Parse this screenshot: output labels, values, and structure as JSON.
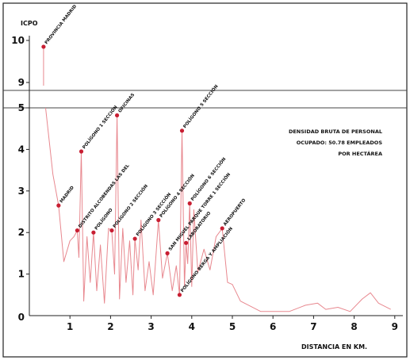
{
  "chart_data": {
    "type": "line",
    "title": "",
    "ylabel": "ICPO",
    "xlabel": "DISTANCIA  EN KM.",
    "xlim": [
      0,
      9.6
    ],
    "ylim_lower": [
      0,
      5
    ],
    "ylim_upper": [
      9,
      10
    ],
    "x_ticks": [
      "1",
      "2",
      "3",
      "4",
      "5",
      "6",
      "7",
      "8",
      "9"
    ],
    "y_ticks_lower": [
      "1",
      "2",
      "3",
      "4",
      "5"
    ],
    "y_ticks_upper": [
      "9",
      "10"
    ],
    "legend": {
      "placement": "right",
      "lines": [
        "DENSIDAD BRUTA DE PERSONAL",
        "OCUPADO: 50.78 EMPLEADOS",
        "POR HECTÁREA"
      ]
    },
    "line_color": "#e8888f",
    "marker_color": "#c81e32",
    "series_points": [
      [
        0.4,
        5.0
      ],
      [
        0.58,
        3.4
      ],
      [
        0.72,
        2.65
      ],
      [
        0.85,
        1.3
      ],
      [
        1.0,
        1.8
      ],
      [
        1.1,
        1.9
      ],
      [
        1.18,
        2.05
      ],
      [
        1.22,
        1.4
      ],
      [
        1.28,
        3.95
      ],
      [
        1.34,
        0.35
      ],
      [
        1.42,
        1.9
      ],
      [
        1.5,
        0.8
      ],
      [
        1.58,
        2.0
      ],
      [
        1.66,
        0.6
      ],
      [
        1.75,
        1.7
      ],
      [
        1.85,
        0.3
      ],
      [
        1.95,
        2.1
      ],
      [
        2.03,
        2.05
      ],
      [
        2.1,
        1.0
      ],
      [
        2.16,
        4.82
      ],
      [
        2.22,
        0.4
      ],
      [
        2.3,
        2.1
      ],
      [
        2.38,
        0.8
      ],
      [
        2.47,
        1.8
      ],
      [
        2.55,
        0.5
      ],
      [
        2.6,
        1.85
      ],
      [
        2.68,
        1.1
      ],
      [
        2.75,
        2.3
      ],
      [
        2.85,
        0.6
      ],
      [
        2.95,
        1.3
      ],
      [
        3.05,
        0.5
      ],
      [
        3.18,
        2.3
      ],
      [
        3.28,
        0.9
      ],
      [
        3.4,
        1.5
      ],
      [
        3.52,
        0.6
      ],
      [
        3.62,
        1.2
      ],
      [
        3.7,
        0.5
      ],
      [
        3.76,
        4.45
      ],
      [
        3.82,
        0.7
      ],
      [
        3.86,
        1.75
      ],
      [
        3.9,
        1.25
      ],
      [
        3.95,
        2.7
      ],
      [
        4.0,
        0.7
      ],
      [
        4.05,
        2.55
      ],
      [
        4.15,
        1.05
      ],
      [
        4.3,
        1.6
      ],
      [
        4.45,
        1.1
      ],
      [
        4.6,
        1.9
      ],
      [
        4.75,
        2.1
      ],
      [
        4.88,
        0.8
      ],
      [
        5.0,
        0.75
      ],
      [
        5.2,
        0.35
      ],
      [
        5.4,
        0.25
      ],
      [
        5.7,
        0.1
      ],
      [
        6.0,
        0.1
      ],
      [
        6.4,
        0.1
      ],
      [
        6.8,
        0.25
      ],
      [
        7.1,
        0.3
      ],
      [
        7.3,
        0.15
      ],
      [
        7.6,
        0.2
      ],
      [
        7.9,
        0.1
      ],
      [
        8.2,
        0.4
      ],
      [
        8.4,
        0.55
      ],
      [
        8.6,
        0.3
      ],
      [
        8.9,
        0.15
      ]
    ],
    "spike_points": [
      [
        0.35,
        9.85
      ]
    ],
    "labeled_points": [
      {
        "x": 0.35,
        "y": 9.85,
        "label": "PROVINCIA MADRID",
        "panel": "upper"
      },
      {
        "x": 0.72,
        "y": 2.65,
        "label": "MADRID",
        "panel": "lower"
      },
      {
        "x": 1.28,
        "y": 3.95,
        "label": "POLÍGONO 1 SECCIÓN",
        "panel": "lower"
      },
      {
        "x": 1.18,
        "y": 2.05,
        "label": "DISTRITO ALCOBENDAS LAS DEL",
        "panel": "lower"
      },
      {
        "x": 1.58,
        "y": 2.0,
        "label": "POLÍGONO",
        "panel": "lower"
      },
      {
        "x": 2.16,
        "y": 4.82,
        "label": "OFICINAS",
        "panel": "lower"
      },
      {
        "x": 2.03,
        "y": 2.05,
        "label": "POLÍGONO 2 SECCIÓN",
        "panel": "lower"
      },
      {
        "x": 2.6,
        "y": 1.85,
        "label": "POLÍGONO 3 SECCIÓN",
        "panel": "lower"
      },
      {
        "x": 3.18,
        "y": 2.3,
        "label": "POLÍGONO 4 SECCIÓN",
        "panel": "lower"
      },
      {
        "x": 3.4,
        "y": 1.5,
        "label": "SAN MIGUEL PARQUE TORRE 1 SECCIÓN",
        "panel": "lower"
      },
      {
        "x": 3.76,
        "y": 4.45,
        "label": "POLÍGONO 5 SECCIÓN",
        "panel": "lower"
      },
      {
        "x": 3.95,
        "y": 2.7,
        "label": "POLÍGONO 6 SECCIÓN",
        "panel": "lower"
      },
      {
        "x": 3.86,
        "y": 1.75,
        "label": "LABORATORIO",
        "panel": "lower"
      },
      {
        "x": 4.75,
        "y": 2.1,
        "label": "AEROPUERTO",
        "panel": "lower"
      },
      {
        "x": 3.7,
        "y": 0.5,
        "label": "POLÍGONO BERGA Y AMPLIACIÓN",
        "panel": "lower"
      }
    ]
  }
}
